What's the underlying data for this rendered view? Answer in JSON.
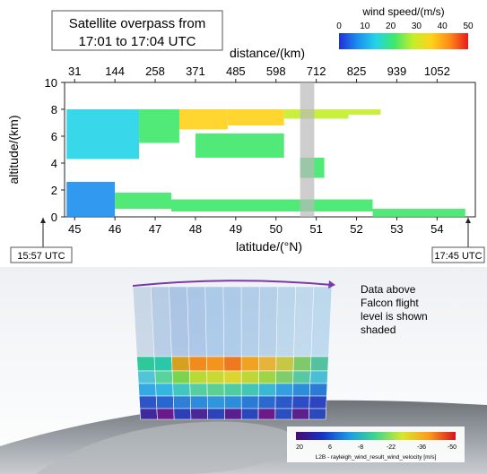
{
  "chart_data": {
    "type": "heatmap",
    "title_lines": [
      "Satellite overpass from",
      "17:01 to 17:04 UTC"
    ],
    "top_axis_label": "distance/(km)",
    "top_ticks": [
      "31",
      "144",
      "258",
      "371",
      "485",
      "598",
      "712",
      "825",
      "939",
      "1052"
    ],
    "xlabel": "latitude/(°N)",
    "ylabel": "altitude/(km)",
    "x_ticks": [
      45,
      46,
      47,
      48,
      49,
      50,
      51,
      52,
      53,
      54
    ],
    "xlim": [
      44.75,
      54.95
    ],
    "ylim": [
      0,
      10
    ],
    "y_ticks": [
      0,
      2,
      4,
      6,
      8,
      10
    ],
    "colorbar": {
      "label": "wind speed/(m/s)",
      "ticks": [
        0,
        10,
        20,
        30,
        40,
        50
      ],
      "colors": [
        "#1f2fd6",
        "#1c8ef0",
        "#22d4e8",
        "#3ee86a",
        "#c4ee2a",
        "#ffd21a",
        "#ff8a1a",
        "#e81a1a"
      ]
    },
    "time_start": "15:57 UTC",
    "time_end": "17:45 UTC",
    "shaded_band_latitude": [
      50.6,
      50.95
    ],
    "wind_regions": [
      {
        "lat": [
          44.8,
          46.6
        ],
        "alt": [
          4.3,
          8.0
        ],
        "speed": 12
      },
      {
        "lat": [
          46.6,
          47.6
        ],
        "alt": [
          5.5,
          8.0
        ],
        "speed": 20
      },
      {
        "lat": [
          47.6,
          48.8
        ],
        "alt": [
          6.5,
          8.0
        ],
        "speed": 38
      },
      {
        "lat": [
          48.8,
          50.2
        ],
        "alt": [
          6.8,
          8.0
        ],
        "speed": 34
      },
      {
        "lat": [
          50.2,
          51.8
        ],
        "alt": [
          7.3,
          8.0
        ],
        "speed": 30
      },
      {
        "lat": [
          51.8,
          52.6
        ],
        "alt": [
          7.6,
          8.0
        ],
        "speed": 28
      },
      {
        "lat": [
          48.0,
          50.2
        ],
        "alt": [
          4.4,
          6.2
        ],
        "speed": 22
      },
      {
        "lat": [
          50.6,
          51.2
        ],
        "alt": [
          2.9,
          4.4
        ],
        "speed": 20
      },
      {
        "lat": [
          44.8,
          46.0
        ],
        "alt": [
          0.0,
          2.6
        ],
        "speed": 8
      },
      {
        "lat": [
          46.0,
          47.4
        ],
        "alt": [
          0.6,
          1.8
        ],
        "speed": 18
      },
      {
        "lat": [
          47.4,
          52.4
        ],
        "alt": [
          0.4,
          1.3
        ],
        "speed": 20
      },
      {
        "lat": [
          52.4,
          54.7
        ],
        "alt": [
          0.0,
          0.6
        ],
        "speed": 22
      }
    ]
  },
  "scene": {
    "annotation_lines": [
      "Data above",
      "Falcon flight",
      "level is shown",
      "shaded"
    ],
    "colorbar_ticks": [
      "20",
      "6",
      "-8",
      "-22",
      "-36",
      "-50"
    ],
    "colorbar_title": "L2B - rayleigh_wind_result_wind_velocity [m/s]",
    "colorbar_colors": [
      "#4a0a6e",
      "#1533c7",
      "#1e9be6",
      "#3fd88a",
      "#d7e82a",
      "#ff9a1a",
      "#d4141f"
    ],
    "profile_rows": [
      [
        "#7fa3c8",
        "#4d86c7",
        "#2f6fc4",
        "#2a73c9",
        "#2c7fd0",
        "#2f7fcf",
        "#3a86d0",
        "#4a8fd1",
        "#5aa0d6",
        "#66a8d9",
        "#5ea8dc"
      ],
      [
        "#2ec89a",
        "#2ac7a8",
        "#d8a020",
        "#f28b1d",
        "#f3941c",
        "#ed7a1e",
        "#f0a322",
        "#e7b33a",
        "#c7c746",
        "#7fc96a",
        "#54c2a0"
      ],
      [
        "#53c4d8",
        "#5bd29b",
        "#7bd44b",
        "#b9d935",
        "#c8d933",
        "#dad530",
        "#bfd638",
        "#9fd544",
        "#7fce6b",
        "#58c7a2",
        "#49bed6"
      ],
      [
        "#33a9e5",
        "#33b6df",
        "#41c7bf",
        "#55cea2",
        "#5ccf92",
        "#50cca3",
        "#44c6b6",
        "#3ab9d2",
        "#339fe0",
        "#2c8ddb",
        "#2b7ad4"
      ],
      [
        "#2d55c7",
        "#2a66cf",
        "#2f7fd7",
        "#2e8bdb",
        "#2f96de",
        "#2c8ddb",
        "#2a7bd5",
        "#2a69cf",
        "#2b59c8",
        "#2c4dc3",
        "#2d45bf"
      ],
      [
        "#3e2a9c",
        "#6a1a8a",
        "#2c3fb7",
        "#4c2796",
        "#2c43ba",
        "#5a1f8e",
        "#2b47bd",
        "#6b1b87",
        "#2b4fc2",
        "#5c218f",
        "#2c48bd"
      ]
    ]
  }
}
